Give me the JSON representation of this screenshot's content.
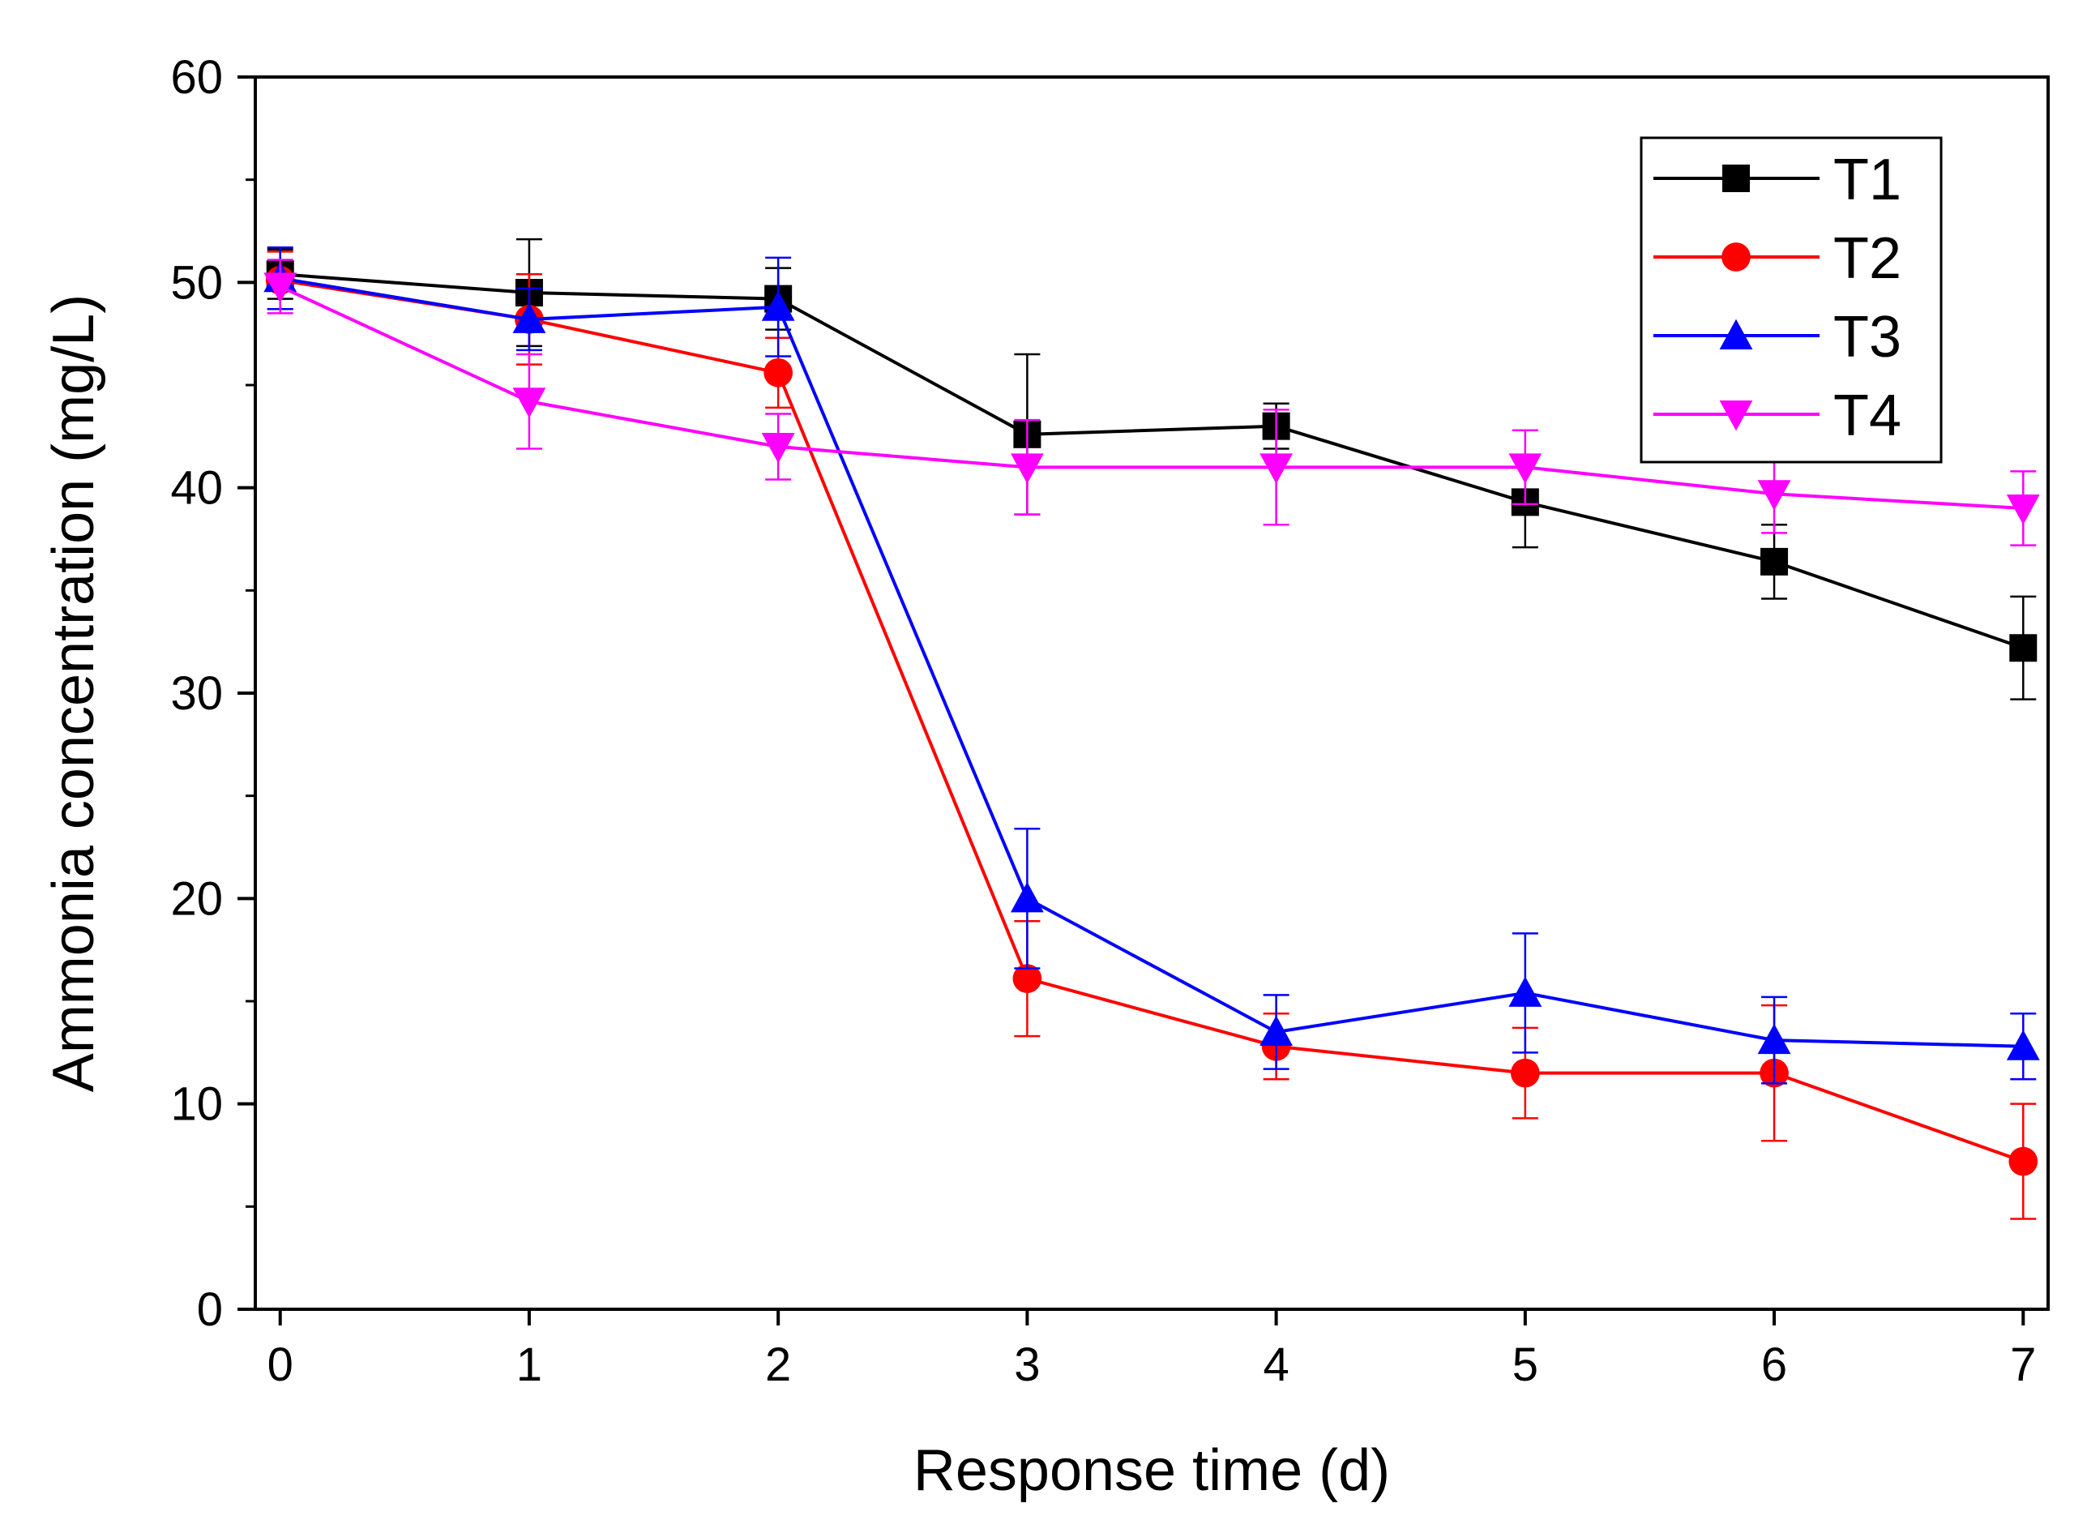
{
  "chart_data": {
    "type": "line",
    "title": "",
    "xlabel": "Response time (d)",
    "ylabel": "Ammonia concentration (mg/L)",
    "x": [
      0,
      1,
      2,
      3,
      4,
      5,
      6,
      7
    ],
    "xlim": [
      -0.1,
      7.1
    ],
    "ylim": [
      0,
      60
    ],
    "xticks": [
      "0",
      "1",
      "2",
      "3",
      "4",
      "5",
      "6",
      "7"
    ],
    "yticks": [
      "0",
      "10",
      "20",
      "30",
      "40",
      "50",
      "60"
    ],
    "grid": false,
    "legend_position": "top-right",
    "series": [
      {
        "name": "T1",
        "color": "#000000",
        "marker": "square",
        "values": [
          50.4,
          49.5,
          49.2,
          42.6,
          43.0,
          39.3,
          36.4,
          32.2
        ],
        "errors": [
          1.2,
          2.6,
          1.5,
          3.9,
          1.1,
          2.2,
          1.8,
          2.5
        ]
      },
      {
        "name": "T2",
        "color": "#ff0000",
        "marker": "circle",
        "values": [
          50.1,
          48.2,
          45.6,
          16.1,
          12.8,
          11.5,
          11.5,
          7.2
        ],
        "errors": [
          1.4,
          2.2,
          1.7,
          2.8,
          1.6,
          2.2,
          3.3,
          2.8
        ]
      },
      {
        "name": "T3",
        "color": "#0000ff",
        "marker": "triangle-up",
        "values": [
          50.2,
          48.2,
          48.8,
          20.0,
          13.5,
          15.4,
          13.1,
          12.8
        ],
        "errors": [
          1.5,
          1.5,
          2.4,
          3.4,
          1.8,
          2.9,
          2.1,
          1.6
        ]
      },
      {
        "name": "T4",
        "color": "#ff00ff",
        "marker": "triangle-down",
        "values": [
          49.8,
          44.2,
          42.0,
          41.0,
          41.0,
          41.0,
          39.7,
          39.0
        ],
        "errors": [
          1.3,
          2.3,
          1.6,
          2.3,
          2.8,
          1.8,
          1.9,
          1.8
        ]
      }
    ]
  }
}
